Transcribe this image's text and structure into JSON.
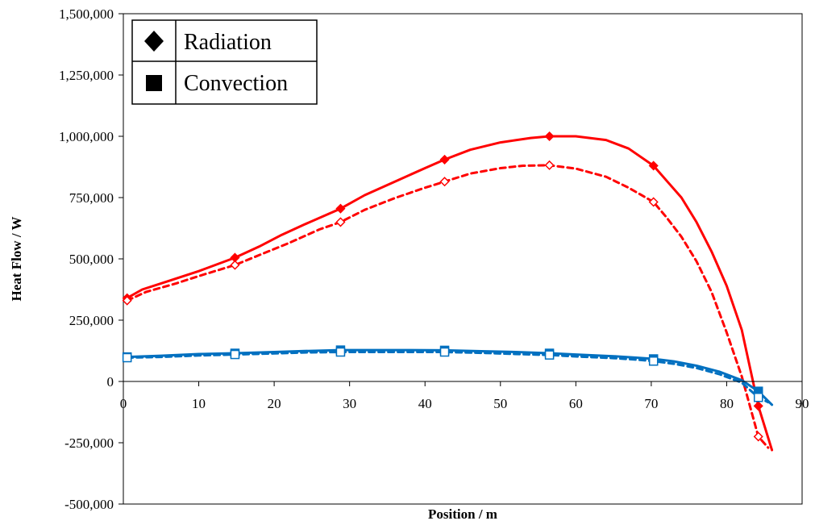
{
  "chart_data": {
    "type": "line",
    "xlabel": "Position / m",
    "ylabel": "Heat Flow / W",
    "xlim": [
      0,
      90
    ],
    "ylim": [
      -500000,
      1500000
    ],
    "x_ticks": [
      0,
      10,
      20,
      30,
      40,
      50,
      60,
      70,
      80,
      90
    ],
    "y_ticks": [
      -500000,
      -250000,
      0,
      250000,
      500000,
      750000,
      1000000,
      1250000,
      1500000
    ],
    "x_tick_labels": [
      "0",
      "10",
      "20",
      "30",
      "40",
      "50",
      "60",
      "70",
      "80",
      "90"
    ],
    "y_tick_labels": [
      "-500,000",
      "-250,000",
      "0",
      "250,000",
      "500,000",
      "750,000",
      "1,000,000",
      "1,250,000",
      "1,500,000"
    ],
    "grid": false,
    "legend": {
      "position": "top-left",
      "entries": [
        {
          "label": "Radiation",
          "marker": "diamond"
        },
        {
          "label": "Convection",
          "marker": "square"
        }
      ]
    },
    "colors": {
      "radiation": "#ff0000",
      "convection": "#0070c0"
    },
    "series": [
      {
        "group": "Radiation",
        "line": "solid",
        "marker": "diamond",
        "marker_fill": "filled",
        "x": [
          0.5,
          2.5,
          6,
          10,
          14.8,
          18,
          21,
          24,
          28.8,
          32,
          36,
          40,
          42.6,
          46,
          50,
          54,
          56.5,
          60,
          64,
          67,
          70.3,
          72,
          74,
          76,
          78,
          80,
          82,
          84.2,
          86
        ],
        "y": [
          340000,
          375000,
          410000,
          450000,
          505000,
          550000,
          598000,
          640000,
          705000,
          760000,
          815000,
          870000,
          905000,
          945000,
          975000,
          993000,
          1000000,
          1000000,
          985000,
          950000,
          880000,
          820000,
          750000,
          650000,
          530000,
          390000,
          210000,
          -100000,
          -280000
        ],
        "marker_x": [
          0.5,
          14.8,
          28.8,
          42.6,
          56.5,
          70.3,
          84.2
        ],
        "marker_y": [
          340000,
          505000,
          705000,
          905000,
          1000000,
          880000,
          -100000
        ]
      },
      {
        "group": "Radiation",
        "line": "dashed",
        "marker": "diamond",
        "marker_fill": "hollow",
        "x": [
          0.5,
          3,
          7,
          10,
          14.8,
          18,
          22,
          26,
          28.8,
          32,
          36,
          40,
          42.6,
          46,
          50,
          53,
          56.5,
          60,
          64,
          67,
          70.3,
          72,
          74,
          76,
          78,
          80,
          82,
          84.2,
          85.5
        ],
        "y": [
          330000,
          365000,
          400000,
          430000,
          475000,
          515000,
          565000,
          620000,
          650000,
          700000,
          748000,
          790000,
          815000,
          848000,
          870000,
          880000,
          882000,
          868000,
          835000,
          790000,
          732000,
          670000,
          590000,
          490000,
          365000,
          200000,
          20000,
          -225000,
          -270000
        ],
        "marker_x": [
          0.5,
          14.8,
          28.8,
          42.6,
          56.5,
          70.3,
          84.2
        ],
        "marker_y": [
          330000,
          475000,
          650000,
          815000,
          882000,
          732000,
          -225000
        ]
      },
      {
        "group": "Convection",
        "line": "solid",
        "marker": "square",
        "marker_fill": "filled",
        "x": [
          0.5,
          5,
          10,
          14.8,
          20,
          24,
          28.8,
          34,
          38,
          42.6,
          48,
          52,
          56.5,
          60,
          65,
          68,
          70.3,
          73,
          76,
          79,
          82,
          84.2,
          86
        ],
        "y": [
          100000,
          105000,
          112000,
          115000,
          120000,
          124000,
          128000,
          128000,
          128000,
          127000,
          123000,
          120000,
          115000,
          110000,
          103000,
          97000,
          92000,
          82000,
          64000,
          40000,
          5000,
          -40000,
          -95000
        ],
        "marker_x": [
          0.5,
          14.8,
          28.8,
          42.6,
          56.5,
          70.3,
          84.2
        ],
        "marker_y": [
          100000,
          115000,
          128000,
          127000,
          115000,
          92000,
          -40000
        ]
      },
      {
        "group": "Convection",
        "line": "dashed",
        "marker": "square",
        "marker_fill": "hollow",
        "x": [
          0.5,
          5,
          10,
          14.8,
          20,
          24,
          28.8,
          34,
          38,
          42.6,
          48,
          52,
          56.5,
          60,
          65,
          68,
          70.3,
          73,
          76,
          79,
          82,
          84.2,
          85.5
        ],
        "y": [
          97000,
          100000,
          106000,
          110000,
          114000,
          118000,
          120000,
          120000,
          120000,
          120000,
          116000,
          112000,
          108000,
          102000,
          95000,
          89000,
          83000,
          72000,
          55000,
          30000,
          -5000,
          -65000,
          -85000
        ],
        "marker_x": [
          0.5,
          14.8,
          28.8,
          42.6,
          56.5,
          70.3,
          84.2
        ],
        "marker_y": [
          97000,
          110000,
          120000,
          120000,
          108000,
          83000,
          -65000
        ]
      }
    ]
  }
}
